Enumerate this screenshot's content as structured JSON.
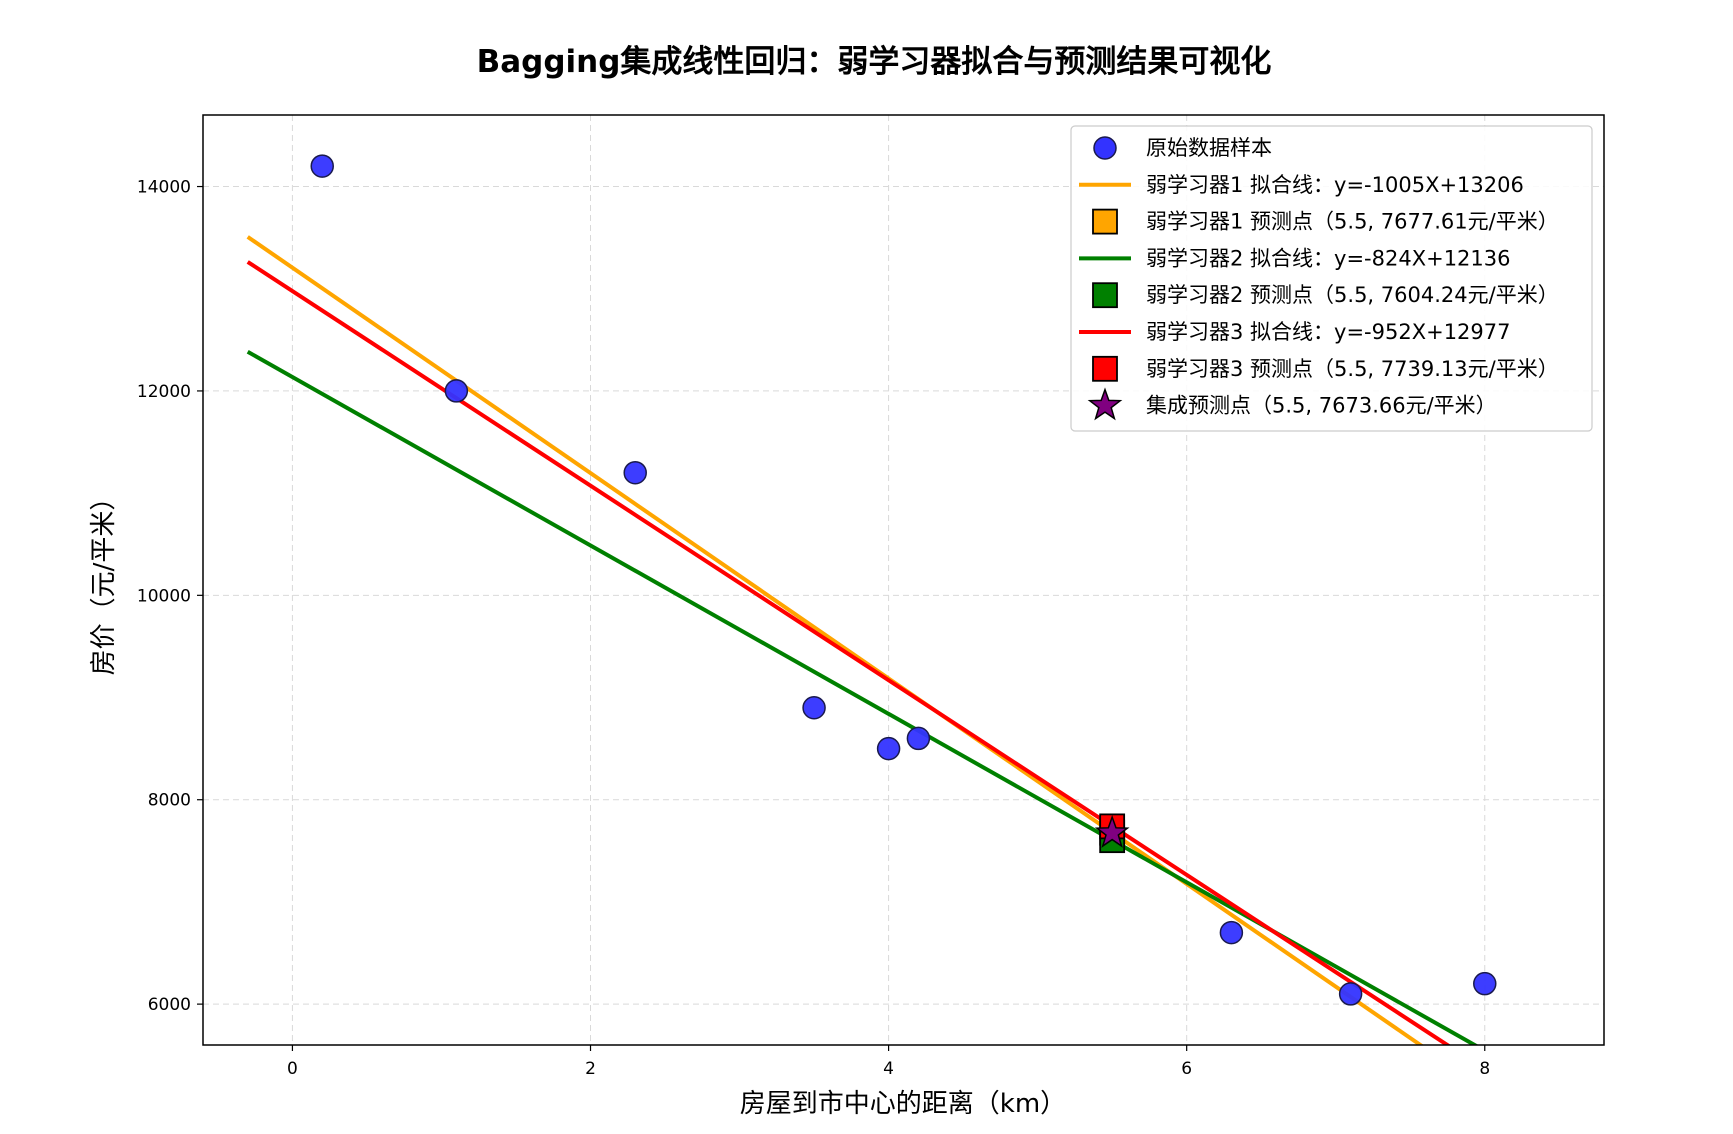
{
  "chart_data": {
    "type": "scatter",
    "title": "Bagging集成线性回归：弱学习器拟合与预测结果可视化",
    "xlabel": "房屋到市中心的距离（km）",
    "ylabel": "房价（元/平米）",
    "xlim": [
      -0.6,
      8.8
    ],
    "ylim": [
      5600,
      14700
    ],
    "x_ticks": [
      0,
      2,
      4,
      6,
      8
    ],
    "y_ticks": [
      6000,
      8000,
      10000,
      12000,
      14000
    ],
    "grid": true,
    "legend_position": "top-right",
    "scatter": {
      "name": "原始数据样本",
      "color": "#3333ff",
      "points": [
        {
          "x": 0.2,
          "y": 14200
        },
        {
          "x": 1.1,
          "y": 12000
        },
        {
          "x": 2.3,
          "y": 11200
        },
        {
          "x": 3.5,
          "y": 8900
        },
        {
          "x": 4.0,
          "y": 8500
        },
        {
          "x": 4.2,
          "y": 8600
        },
        {
          "x": 6.3,
          "y": 6700
        },
        {
          "x": 7.1,
          "y": 6100
        },
        {
          "x": 8.0,
          "y": 6200
        }
      ]
    },
    "series": [
      {
        "name": "弱学习器1 拟合线：y=-1005X+13206",
        "slope": -1005,
        "intercept": 13206,
        "x_range": [
          -0.3,
          8.2
        ],
        "color": "#ffa500"
      },
      {
        "name": "弱学习器2 拟合线：y=-824X+12136",
        "slope": -824,
        "intercept": 12136,
        "x_range": [
          -0.3,
          8.2
        ],
        "color": "#008000"
      },
      {
        "name": "弱学习器3 拟合线：y=-952X+12977",
        "slope": -952,
        "intercept": 12977,
        "x_range": [
          -0.3,
          8.2
        ],
        "color": "#ff0000"
      }
    ],
    "predictions": [
      {
        "name": "弱学习器1 预测点（5.5, 7677.61元/平米）",
        "x": 5.5,
        "y": 7677.61,
        "color": "#ffa500",
        "marker": "square"
      },
      {
        "name": "弱学习器2 预测点（5.5, 7604.24元/平米）",
        "x": 5.5,
        "y": 7604.24,
        "color": "#008000",
        "marker": "square"
      },
      {
        "name": "弱学习器3 预测点（5.5, 7739.13元/平米）",
        "x": 5.5,
        "y": 7739.13,
        "color": "#ff0000",
        "marker": "square"
      },
      {
        "name": "集成预测点（5.5, 7673.66元/平米）",
        "x": 5.5,
        "y": 7673.66,
        "color": "#800080",
        "marker": "star"
      }
    ],
    "legend": [
      {
        "label": "原始数据样本",
        "kind": "circle",
        "color": "#3333ff"
      },
      {
        "label": "弱学习器1 拟合线：y=-1005X+13206",
        "kind": "line",
        "color": "#ffa500"
      },
      {
        "label": "弱学习器1 预测点（5.5, 7677.61元/平米）",
        "kind": "square",
        "color": "#ffa500"
      },
      {
        "label": "弱学习器2 拟合线：y=-824X+12136",
        "kind": "line",
        "color": "#008000"
      },
      {
        "label": "弱学习器2 预测点（5.5, 7604.24元/平米）",
        "kind": "square",
        "color": "#008000"
      },
      {
        "label": "弱学习器3 拟合线：y=-952X+12977",
        "kind": "line",
        "color": "#ff0000"
      },
      {
        "label": "弱学习器3 预测点（5.5, 7739.13元/平米）",
        "kind": "square",
        "color": "#ff0000"
      },
      {
        "label": "集成预测点（5.5, 7673.66元/平米）",
        "kind": "star",
        "color": "#800080"
      }
    ]
  }
}
